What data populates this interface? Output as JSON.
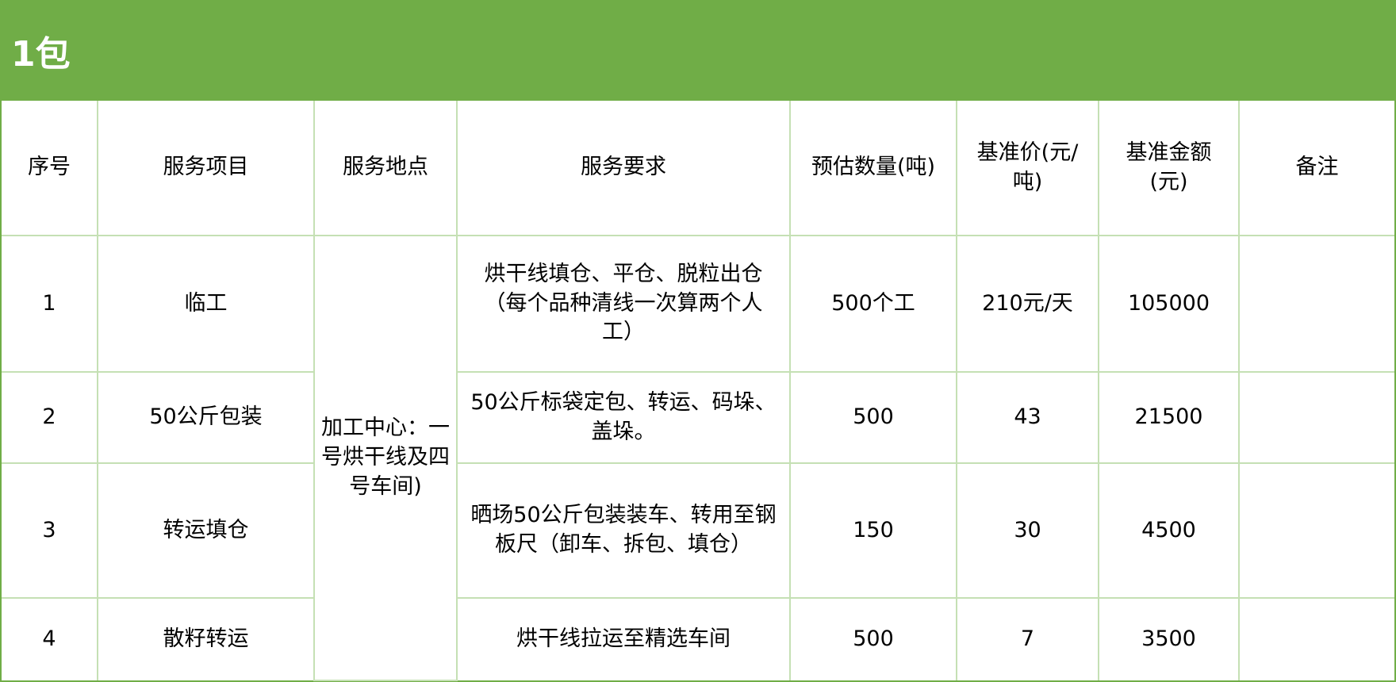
{
  "title": "1包",
  "colors": {
    "header_green": "#70ad47",
    "grid": "#c5e0b4"
  },
  "columns": [
    "序号",
    "服务项目",
    "服务地点",
    "服务要求",
    "预估数量(吨)",
    "基准价(元/吨)",
    "基准金额(元)",
    "备注"
  ],
  "location": "加工中心：一号烘干线及四号车间)",
  "rows": [
    {
      "no": "1",
      "item": "临工",
      "req": "烘干线填仓、平仓、脱粒出仓（每个品种清线一次算两个人工）",
      "qty": "500个工",
      "price": "210元/天",
      "amount": "105000",
      "note": ""
    },
    {
      "no": "2",
      "item": "50公斤包装",
      "req": "50公斤标袋定包、转运、码垛、盖垛。",
      "qty": "500",
      "price": "43",
      "amount": "21500",
      "note": ""
    },
    {
      "no": "3",
      "item": "转运填仓",
      "req": "晒场50公斤包装装车、转用至钢板尺（卸车、拆包、填仓）",
      "qty": "150",
      "price": "30",
      "amount": "4500",
      "note": ""
    },
    {
      "no": "4",
      "item": "散籽转运",
      "req": "烘干线拉运至精选车间",
      "qty": "500",
      "price": "7",
      "amount": "3500",
      "note": ""
    }
  ]
}
